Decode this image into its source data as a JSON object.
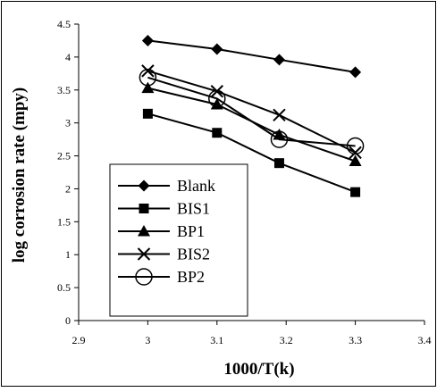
{
  "chart_data": {
    "type": "line",
    "title": "",
    "xlabel": "1000/T(k)",
    "ylabel": "log corrosion rate (mpy)",
    "xlim": [
      2.9,
      3.4
    ],
    "ylim": [
      0,
      4.5
    ],
    "x_ticks": [
      "2.9",
      "3",
      "3.1",
      "3.2",
      "3.3",
      "3.4"
    ],
    "y_ticks": [
      "0",
      "0.5",
      "1",
      "1.5",
      "2",
      "2.5",
      "3",
      "3.5",
      "4",
      "4.5"
    ],
    "x": [
      3.0,
      3.1,
      3.19,
      3.3
    ],
    "grid": false,
    "legend_position": "inside lower-left",
    "series": [
      {
        "name": "Blank",
        "marker": "diamond",
        "values": [
          4.25,
          4.12,
          3.96,
          3.77
        ]
      },
      {
        "name": "BIS1",
        "marker": "square",
        "values": [
          3.14,
          2.85,
          2.39,
          1.95
        ]
      },
      {
        "name": "BP1",
        "marker": "triangle",
        "values": [
          3.53,
          3.28,
          2.82,
          2.42
        ]
      },
      {
        "name": "BIS2",
        "marker": "x",
        "values": [
          3.79,
          3.48,
          3.12,
          2.55
        ]
      },
      {
        "name": "BP2",
        "marker": "open-circle",
        "values": [
          3.69,
          3.37,
          2.75,
          2.65
        ]
      }
    ],
    "colors": {
      "line": "#000000",
      "background": "#ffffff",
      "frame": "#000000"
    }
  }
}
